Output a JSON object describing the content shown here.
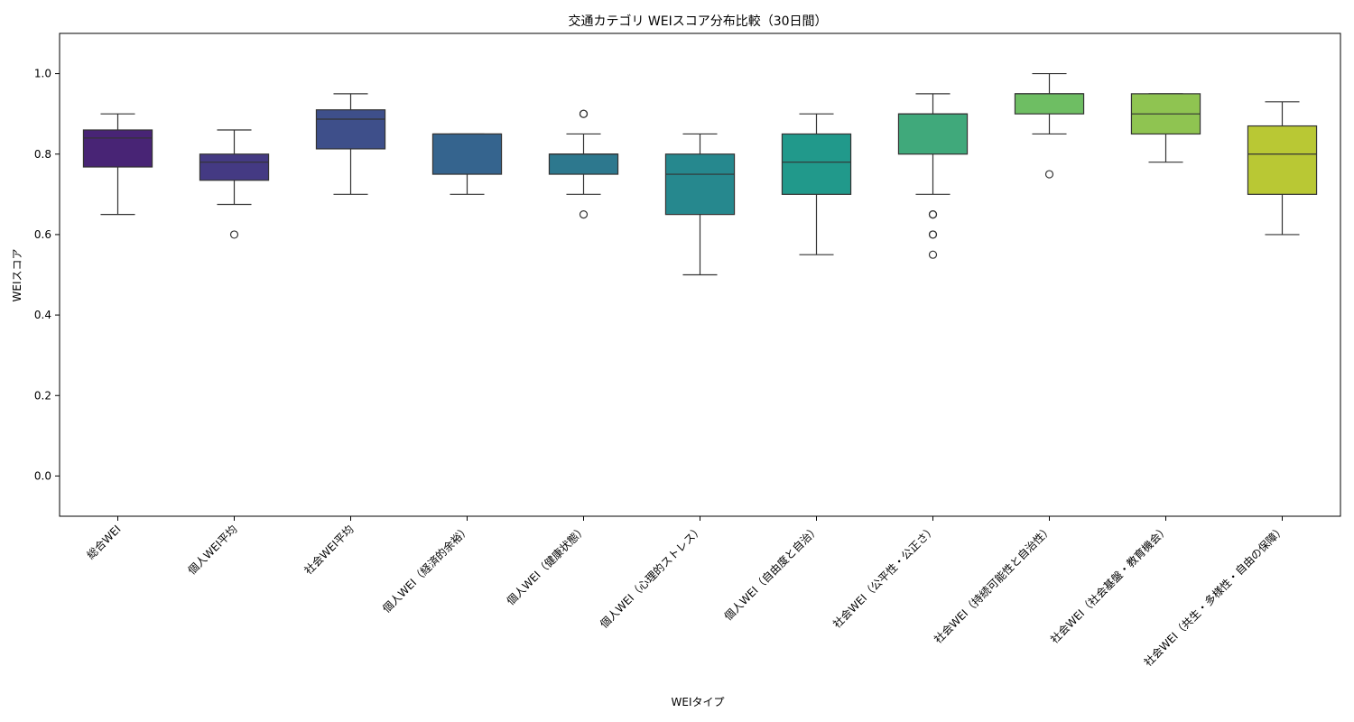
{
  "chart_data": {
    "type": "box",
    "title": "交通カテゴリ WEIスコア分布比較（30日間）",
    "xlabel": "WEIタイプ",
    "ylabel": "WEIスコア",
    "ylim": [
      -0.1,
      1.1
    ],
    "yticks": [
      0.0,
      0.2,
      0.4,
      0.6,
      0.8,
      1.0
    ],
    "ytick_labels": [
      "0.0",
      "0.2",
      "0.4",
      "0.6",
      "0.8",
      "1.0"
    ],
    "grid": false,
    "categories": [
      "総合WEI",
      "個人WEI平均",
      "社会WEI平均",
      "個人WEI（経済的余裕）",
      "個人WEI（健康状態）",
      "個人WEI（心理的ストレス）",
      "個人WEI（自由度と自治）",
      "社会WEI（公平性・公正さ）",
      "社会WEI（持続可能性と自治性）",
      "社会WEI（社会基盤・教育機会）",
      "社会WEI（共生・多様性・自由の保障）"
    ],
    "boxes": [
      {
        "whisker_low": 0.65,
        "q1": 0.768,
        "median": 0.84,
        "q3": 0.86,
        "whisker_high": 0.9,
        "outliers": [],
        "color": "#482475"
      },
      {
        "whisker_low": 0.675,
        "q1": 0.735,
        "median": 0.78,
        "q3": 0.8,
        "whisker_high": 0.86,
        "outliers": [
          0.6
        ],
        "color": "#443a83"
      },
      {
        "whisker_low": 0.7,
        "q1": 0.813,
        "median": 0.887,
        "q3": 0.91,
        "whisker_high": 0.95,
        "outliers": [],
        "color": "#3e4f8a"
      },
      {
        "whisker_low": 0.7,
        "q1": 0.75,
        "median": 0.85,
        "q3": 0.85,
        "whisker_high": 0.85,
        "outliers": [],
        "color": "#35648e"
      },
      {
        "whisker_low": 0.7,
        "q1": 0.75,
        "median": 0.8,
        "q3": 0.8,
        "whisker_high": 0.85,
        "outliers": [
          0.9,
          0.9,
          0.65
        ],
        "color": "#2d788e"
      },
      {
        "whisker_low": 0.5,
        "q1": 0.65,
        "median": 0.75,
        "q3": 0.8,
        "whisker_high": 0.85,
        "outliers": [],
        "color": "#26888e"
      },
      {
        "whisker_low": 0.55,
        "q1": 0.7,
        "median": 0.78,
        "q3": 0.85,
        "whisker_high": 0.9,
        "outliers": [],
        "color": "#21998b"
      },
      {
        "whisker_low": 0.7,
        "q1": 0.8,
        "median": 0.9,
        "q3": 0.9,
        "whisker_high": 0.95,
        "outliers": [
          0.65,
          0.65,
          0.6,
          0.6,
          0.55
        ],
        "color": "#40a97b"
      },
      {
        "whisker_low": 0.85,
        "q1": 0.9,
        "median": 0.95,
        "q3": 0.95,
        "whisker_high": 1.0,
        "outliers": [
          0.75
        ],
        "color": "#6ebe63"
      },
      {
        "whisker_low": 0.78,
        "q1": 0.85,
        "median": 0.9,
        "q3": 0.95,
        "whisker_high": 0.95,
        "outliers": [],
        "color": "#8fc451"
      },
      {
        "whisker_low": 0.6,
        "q1": 0.7,
        "median": 0.8,
        "q3": 0.87,
        "whisker_high": 0.93,
        "outliers": [],
        "color": "#b9c834"
      }
    ]
  }
}
